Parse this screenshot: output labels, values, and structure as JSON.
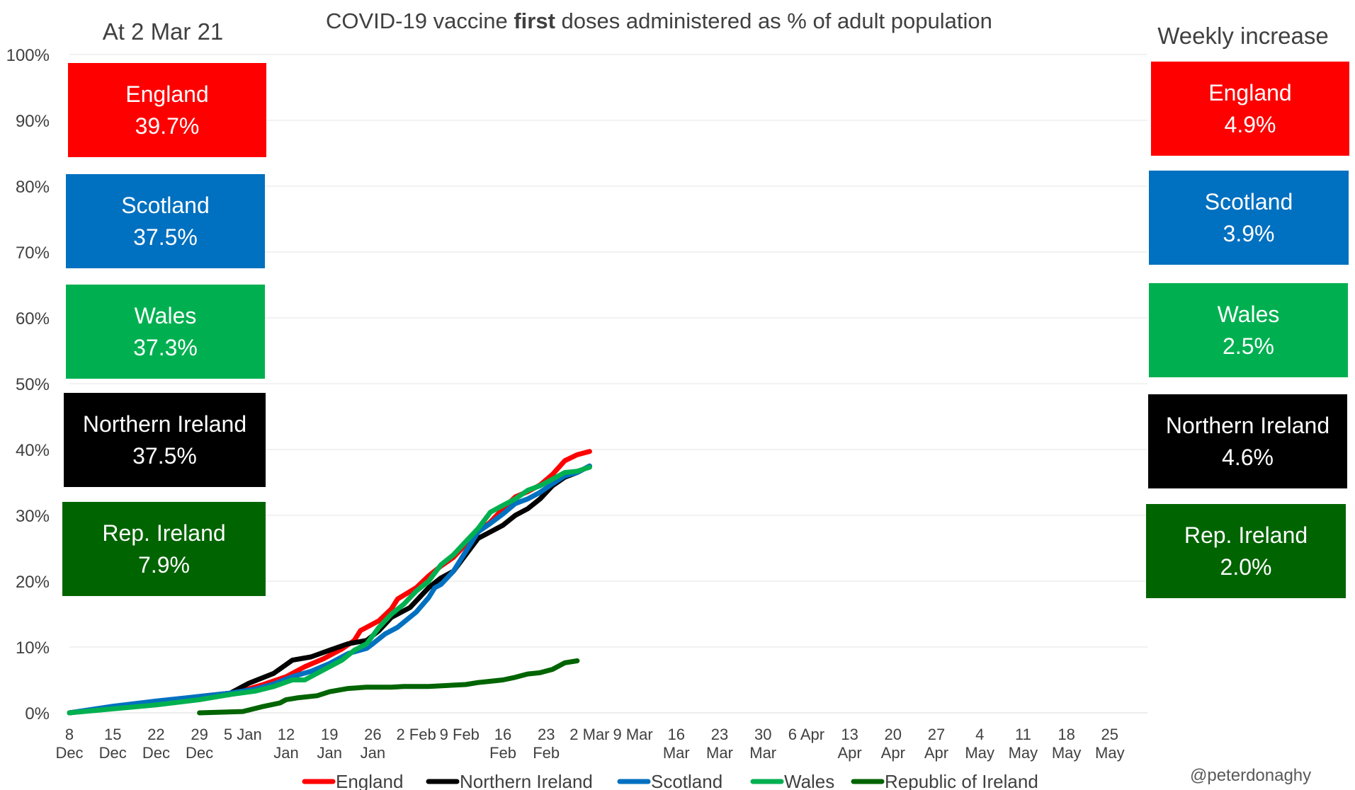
{
  "chart_data": {
    "type": "line",
    "title_pre": "COVID-19 vaccine ",
    "title_bold": "first",
    "title_post": " doses administered as % of adult population",
    "ylabel": "",
    "xlabel": "",
    "ylim": [
      0,
      100
    ],
    "y_ticks": [
      "0%",
      "10%",
      "20%",
      "30%",
      "40%",
      "50%",
      "60%",
      "70%",
      "80%",
      "90%",
      "100%"
    ],
    "x_range_days": [
      0,
      174
    ],
    "x_ticks": [
      {
        "day": 0,
        "line1": "8",
        "line2": "Dec"
      },
      {
        "day": 7,
        "line1": "15",
        "line2": "Dec"
      },
      {
        "day": 14,
        "line1": "22",
        "line2": "Dec"
      },
      {
        "day": 21,
        "line1": "29",
        "line2": "Dec"
      },
      {
        "day": 28,
        "line1": "5 Jan",
        "line2": ""
      },
      {
        "day": 35,
        "line1": "12",
        "line2": "Jan"
      },
      {
        "day": 42,
        "line1": "19",
        "line2": "Jan"
      },
      {
        "day": 49,
        "line1": "26",
        "line2": "Jan"
      },
      {
        "day": 56,
        "line1": "2 Feb",
        "line2": ""
      },
      {
        "day": 63,
        "line1": "9 Feb",
        "line2": ""
      },
      {
        "day": 70,
        "line1": "16",
        "line2": "Feb"
      },
      {
        "day": 77,
        "line1": "23",
        "line2": "Feb"
      },
      {
        "day": 84,
        "line1": "2 Mar",
        "line2": ""
      },
      {
        "day": 91,
        "line1": "9 Mar",
        "line2": ""
      },
      {
        "day": 98,
        "line1": "16",
        "line2": "Mar"
      },
      {
        "day": 105,
        "line1": "23",
        "line2": "Mar"
      },
      {
        "day": 112,
        "line1": "30",
        "line2": "Mar"
      },
      {
        "day": 119,
        "line1": "6 Apr",
        "line2": ""
      },
      {
        "day": 126,
        "line1": "13",
        "line2": "Apr"
      },
      {
        "day": 133,
        "line1": "20",
        "line2": "Apr"
      },
      {
        "day": 140,
        "line1": "27",
        "line2": "Apr"
      },
      {
        "day": 147,
        "line1": "4",
        "line2": "May"
      },
      {
        "day": 154,
        "line1": "11",
        "line2": "May"
      },
      {
        "day": 161,
        "line1": "18",
        "line2": "May"
      },
      {
        "day": 168,
        "line1": "25",
        "line2": "May"
      }
    ],
    "series": [
      {
        "name": "England",
        "color": "#ff0000",
        "points": [
          [
            0,
            0
          ],
          [
            7,
            0.8
          ],
          [
            14,
            1.4
          ],
          [
            21,
            2.2
          ],
          [
            26,
            2.8
          ],
          [
            31,
            4.2
          ],
          [
            35,
            5.5
          ],
          [
            38,
            7.0
          ],
          [
            41,
            8.2
          ],
          [
            44,
            9.7
          ],
          [
            46,
            11.0
          ],
          [
            47,
            12.5
          ],
          [
            50,
            14.0
          ],
          [
            52,
            15.8
          ],
          [
            53,
            17.3
          ],
          [
            56,
            19.0
          ],
          [
            58,
            20.8
          ],
          [
            60,
            22.3
          ],
          [
            62,
            23.6
          ],
          [
            64,
            25.6
          ],
          [
            66,
            27.5
          ],
          [
            68,
            29.0
          ],
          [
            70,
            31.0
          ],
          [
            72,
            32.8
          ],
          [
            74,
            33.6
          ],
          [
            76,
            34.6
          ],
          [
            78,
            36.2
          ],
          [
            80,
            38.3
          ],
          [
            82,
            39.2
          ],
          [
            84,
            39.7
          ]
        ]
      },
      {
        "name": "Northern Ireland",
        "color": "#000000",
        "points": [
          [
            0,
            0
          ],
          [
            7,
            0.9
          ],
          [
            14,
            1.7
          ],
          [
            21,
            2.5
          ],
          [
            26,
            3.0
          ],
          [
            29,
            4.5
          ],
          [
            33,
            6.0
          ],
          [
            36,
            8.0
          ],
          [
            39,
            8.5
          ],
          [
            42,
            9.5
          ],
          [
            45,
            10.5
          ],
          [
            48,
            11.0
          ],
          [
            50,
            12.5
          ],
          [
            52,
            14.5
          ],
          [
            55,
            16.0
          ],
          [
            58,
            19.0
          ],
          [
            60,
            20.5
          ],
          [
            62,
            21.5
          ],
          [
            64,
            24.0
          ],
          [
            66,
            26.5
          ],
          [
            68,
            27.5
          ],
          [
            70,
            28.5
          ],
          [
            72,
            30.0
          ],
          [
            74,
            31.0
          ],
          [
            76,
            32.5
          ],
          [
            78,
            34.5
          ],
          [
            80,
            35.8
          ],
          [
            82,
            36.5
          ],
          [
            84,
            37.5
          ]
        ]
      },
      {
        "name": "Scotland",
        "color": "#0070c0",
        "points": [
          [
            0,
            0
          ],
          [
            7,
            1.0
          ],
          [
            14,
            1.8
          ],
          [
            21,
            2.5
          ],
          [
            26,
            3.0
          ],
          [
            30,
            3.6
          ],
          [
            33,
            4.4
          ],
          [
            36,
            5.5
          ],
          [
            39,
            6.3
          ],
          [
            42,
            7.5
          ],
          [
            45,
            9.0
          ],
          [
            48,
            9.8
          ],
          [
            49,
            10.5
          ],
          [
            51,
            12.0
          ],
          [
            53,
            13.0
          ],
          [
            56,
            15.3
          ],
          [
            58,
            17.5
          ],
          [
            59,
            19.0
          ],
          [
            60,
            19.5
          ],
          [
            62,
            21.5
          ],
          [
            64,
            24.5
          ],
          [
            66,
            27.5
          ],
          [
            68,
            28.8
          ],
          [
            70,
            30.2
          ],
          [
            72,
            31.8
          ],
          [
            74,
            32.5
          ],
          [
            76,
            33.5
          ],
          [
            78,
            34.8
          ],
          [
            80,
            36.0
          ],
          [
            82,
            36.5
          ],
          [
            84,
            37.5
          ]
        ]
      },
      {
        "name": "Wales",
        "color": "#00b050",
        "points": [
          [
            0,
            0
          ],
          [
            7,
            0.6
          ],
          [
            14,
            1.2
          ],
          [
            21,
            2.0
          ],
          [
            26,
            2.8
          ],
          [
            30,
            3.3
          ],
          [
            33,
            4.0
          ],
          [
            36,
            5.0
          ],
          [
            38,
            5.0
          ],
          [
            40,
            6.0
          ],
          [
            42,
            7.0
          ],
          [
            44,
            8.0
          ],
          [
            46,
            9.5
          ],
          [
            48,
            10.5
          ],
          [
            50,
            13.0
          ],
          [
            52,
            15.0
          ],
          [
            54,
            16.5
          ],
          [
            56,
            18.5
          ],
          [
            58,
            20.0
          ],
          [
            60,
            22.5
          ],
          [
            62,
            24.0
          ],
          [
            64,
            26.0
          ],
          [
            66,
            28.0
          ],
          [
            68,
            30.5
          ],
          [
            70,
            31.5
          ],
          [
            72,
            32.5
          ],
          [
            74,
            33.8
          ],
          [
            76,
            34.5
          ],
          [
            78,
            35.5
          ],
          [
            80,
            36.5
          ],
          [
            82,
            36.7
          ],
          [
            84,
            37.3
          ]
        ]
      },
      {
        "name": "Republic of Ireland",
        "color": "#006400",
        "points": [
          [
            21,
            0
          ],
          [
            28,
            0.2
          ],
          [
            31,
            0.9
          ],
          [
            34,
            1.5
          ],
          [
            35,
            2.0
          ],
          [
            37,
            2.3
          ],
          [
            40,
            2.6
          ],
          [
            42,
            3.2
          ],
          [
            45,
            3.7
          ],
          [
            48,
            3.9
          ],
          [
            52,
            3.9
          ],
          [
            54,
            4.0
          ],
          [
            58,
            4.0
          ],
          [
            62,
            4.2
          ],
          [
            64,
            4.3
          ],
          [
            66,
            4.6
          ],
          [
            68,
            4.8
          ],
          [
            70,
            5.0
          ],
          [
            72,
            5.4
          ],
          [
            74,
            5.9
          ],
          [
            76,
            6.1
          ],
          [
            78,
            6.6
          ],
          [
            80,
            7.6
          ],
          [
            82,
            7.9
          ]
        ]
      }
    ],
    "legend_position": "bottom"
  },
  "date_header": "At 2 Mar 21",
  "weekly_header": "Weekly increase",
  "current_boxes": [
    {
      "name": "England",
      "value": "39.7%",
      "color": "#ff0000"
    },
    {
      "name": "Scotland",
      "value": "37.5%",
      "color": "#0070c0"
    },
    {
      "name": "Wales",
      "value": "37.3%",
      "color": "#00b050"
    },
    {
      "name": "Northern Ireland",
      "value": "37.5%",
      "color": "#000000"
    },
    {
      "name": "Rep. Ireland",
      "value": "7.9%",
      "color": "#006400"
    }
  ],
  "weekly_boxes": [
    {
      "name": "England",
      "value": "4.9%",
      "color": "#ff0000"
    },
    {
      "name": "Scotland",
      "value": "3.9%",
      "color": "#0070c0"
    },
    {
      "name": "Wales",
      "value": "2.5%",
      "color": "#00b050"
    },
    {
      "name": "Northern Ireland",
      "value": "4.6%",
      "color": "#000000"
    },
    {
      "name": "Rep. Ireland",
      "value": "2.0%",
      "color": "#006400"
    }
  ],
  "credit": "@peterdonaghy"
}
